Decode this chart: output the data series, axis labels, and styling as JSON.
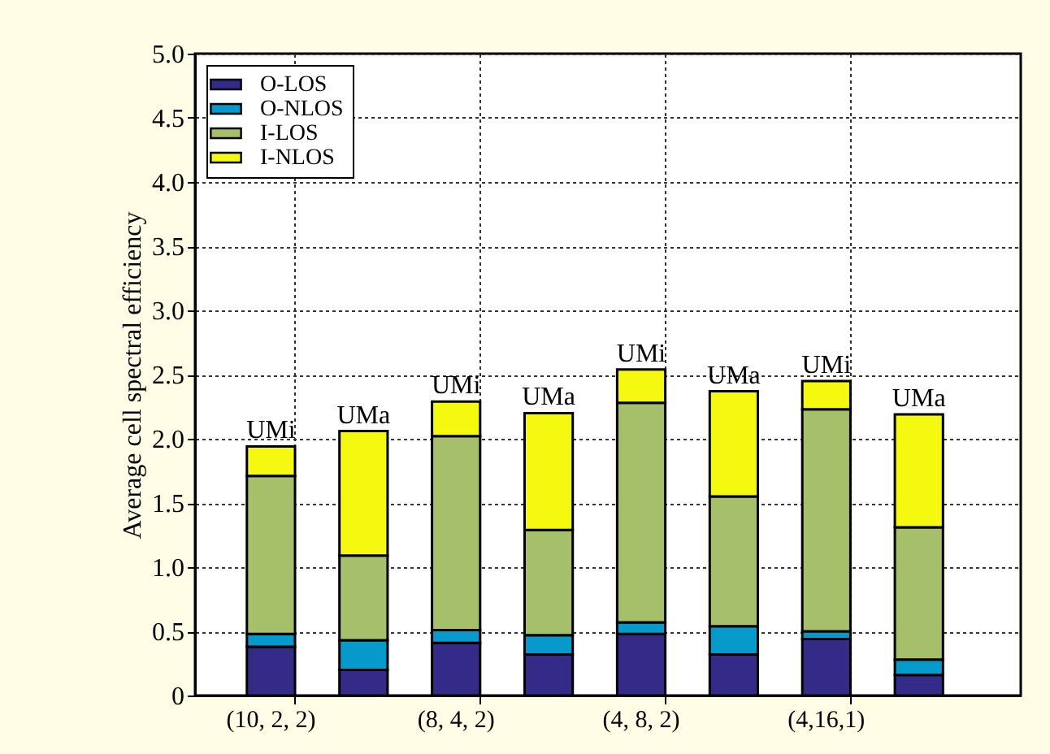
{
  "chart_data": {
    "type": "bar",
    "stacked": true,
    "ylabel": "Average cell spectral efficiency",
    "categories": [
      "(10, 2, 2)",
      null,
      "(8, 4, 2)",
      null,
      "(4, 8, 2)",
      null,
      "(4,16,1)",
      null
    ],
    "ylim": [
      0,
      5
    ],
    "yticks": [
      0,
      0.5,
      {
        "value": 1,
        "label": "1.0"
      },
      1.5,
      {
        "value": 2,
        "label": "2.0"
      },
      2.5,
      {
        "value": 3,
        "label": "3.0"
      },
      3.5,
      {
        "value": 4,
        "label": "4.0"
      },
      4.5,
      {
        "value": 5,
        "label": "5.0"
      }
    ],
    "series": [
      {
        "name": "O-LOS",
        "color": "#342a87",
        "values": [
          0.38,
          0.2,
          0.41,
          0.32,
          0.48,
          0.32,
          0.44,
          0.16
        ]
      },
      {
        "name": "O-NLOS",
        "color": "#0599cc",
        "values": [
          0.1,
          0.23,
          0.1,
          0.15,
          0.09,
          0.22,
          0.06,
          0.12
        ]
      },
      {
        "name": "I-LOS",
        "color": "#a5bf6a",
        "values": [
          1.23,
          0.66,
          1.51,
          0.82,
          1.71,
          1.01,
          1.73,
          1.03
        ]
      },
      {
        "name": "I-NLOS",
        "color": "#f5f90f",
        "values": [
          0.23,
          0.97,
          0.27,
          0.91,
          0.26,
          0.82,
          0.22,
          0.88
        ]
      }
    ],
    "annotations": [
      {
        "text": "UMi",
        "y": 1.94
      },
      {
        "text": "UMa",
        "y": 2.06
      },
      {
        "text": "UMi",
        "y": 2.29
      },
      {
        "text": "UMa",
        "y": 2.2
      },
      {
        "text": "UMi",
        "y": 2.54
      },
      {
        "text": "UMa",
        "y": 2.37
      },
      {
        "text": "UMi",
        "y": 2.45
      },
      {
        "text": "UMa",
        "y": 2.19
      }
    ],
    "grid": true,
    "legend": "top left"
  }
}
